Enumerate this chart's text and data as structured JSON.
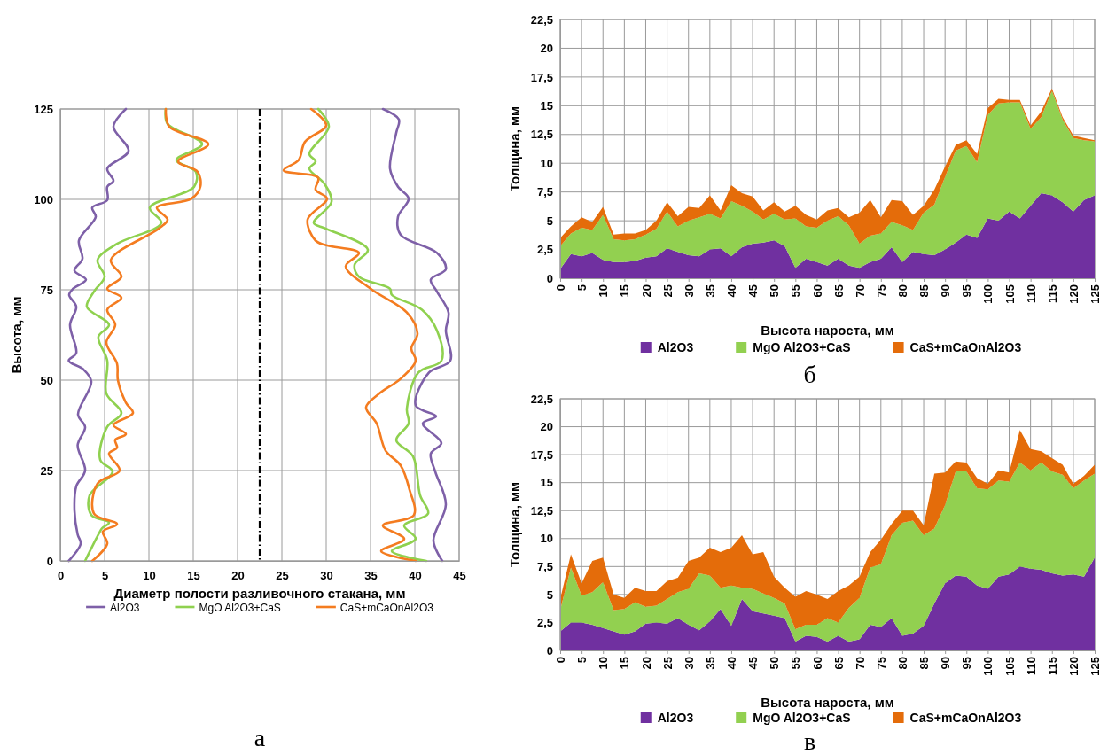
{
  "chart_data": [
    {
      "type": "line",
      "title": "а",
      "xlabel": "Диаметр полости разливочного стакана, мм",
      "ylabel": "Высота, мм",
      "xlim": [
        0,
        45
      ],
      "xticks": [
        0,
        5,
        10,
        15,
        20,
        25,
        30,
        35,
        40,
        45
      ],
      "ylim": [
        0,
        125
      ],
      "yticks": [
        0,
        25,
        50,
        75,
        100,
        125
      ],
      "grid": true,
      "legend": "bottom",
      "line_style": "solid",
      "ref_lines": [
        {
          "axis": "x",
          "value": 22.5,
          "color": "#000000",
          "line_style": "dashed"
        }
      ],
      "series": [
        {
          "name": "Al2O3",
          "color": "#7e60a8",
          "x": [
            0.95,
            2.3,
            1.96,
            1.6,
            1.8,
            2.8,
            1.96,
            2.8,
            2.0,
            3.5,
            2.6,
            0.95,
            1.8,
            1.1,
            1.8,
            1.0,
            1.45,
            2.9,
            1.6,
            2.5,
            2.1,
            4.0,
            3.6,
            5.3,
            5.3,
            6.0,
            5.3,
            7.7,
            6.0,
            7.4
          ],
          "values": [
            0,
            4.8,
            7.3,
            14,
            20.6,
            25,
            32,
            37,
            40.5,
            49.6,
            53,
            55.4,
            57.5,
            65.3,
            70.3,
            73.6,
            75.3,
            77.8,
            80.3,
            83.6,
            88.6,
            95.2,
            97.7,
            99.8,
            103.5,
            105.1,
            108.5,
            113.4,
            120.1,
            125
          ]
        },
        {
          "name": "MgO Al2O3+CaS",
          "color": "#8fd14f",
          "x": [
            2.8,
            4.3,
            4.7,
            5.5,
            3.5,
            3.3,
            5.9,
            4.5,
            5.3,
            6.9,
            5.2,
            5.3,
            4.3,
            5.5,
            3.0,
            3.8,
            5.0,
            4.2,
            6.4,
            11.4,
            10.1,
            15.1,
            15.3,
            13.1,
            16.0,
            12.1,
            11.9
          ],
          "values": [
            0,
            7.3,
            9,
            10.6,
            12.7,
            18.1,
            24.7,
            28,
            37.1,
            40.9,
            46.3,
            55.4,
            62,
            65.3,
            70.3,
            74.5,
            78.6,
            83.2,
            87.7,
            93.5,
            97.7,
            103.5,
            107.6,
            110.9,
            115.3,
            120.9,
            125
          ]
        },
        {
          "name": "CaS+mCaOnAl2O3",
          "color": "#f47c20",
          "x": [
            3.6,
            5.3,
            4.8,
            6.4,
            3.8,
            4.2,
            6.7,
            5.5,
            6.4,
            6.2,
            7.4,
            6.0,
            8.2,
            7.4,
            6.5,
            6.4,
            5.2,
            6.2,
            5.3,
            6.9,
            5.3,
            6.9,
            5.7,
            11.1,
            12.1,
            10.9,
            14.8,
            15.8,
            15.5,
            13.3,
            16.7,
            12.3,
            11.9
          ],
          "values": [
            0,
            4.8,
            8.1,
            10.2,
            13.1,
            21.4,
            25,
            29.7,
            31.3,
            33.5,
            35.1,
            37.6,
            40.9,
            43.8,
            50,
            54.6,
            60.4,
            65.3,
            69.5,
            72.8,
            75.3,
            78.6,
            83.2,
            91.9,
            94.4,
            97.7,
            100.2,
            103.5,
            107.6,
            110.5,
            115.3,
            120.1,
            125
          ]
        },
        {
          "color": "#7e60a8",
          "x": [
            43.1,
            42.1,
            43.5,
            42.3,
            41.8,
            43.0,
            40.9,
            42.4,
            40.1,
            41.6,
            44.0,
            43.5,
            43.8,
            42.5,
            41.8,
            43.5,
            42.5,
            38.4,
            38.1,
            39.3,
            38.1,
            37.2,
            37.9,
            38.2,
            36.4
          ],
          "values": [
            0,
            5.6,
            15.6,
            24.7,
            29.7,
            32.6,
            38,
            40,
            43,
            52.1,
            55.4,
            63.7,
            68.7,
            74.5,
            77.8,
            80.7,
            85.2,
            90.2,
            95.2,
            100.2,
            103.5,
            108.5,
            118.4,
            122.1,
            125
          ]
        },
        {
          "color": "#8fd14f",
          "x": [
            41.3,
            37.4,
            40.1,
            38.8,
            41.5,
            40.6,
            39.8,
            37.9,
            39.3,
            39.1,
            40.4,
            43.0,
            42.5,
            40.8,
            37.4,
            37.2,
            33.7,
            33.2,
            34.7,
            30.0,
            28.6,
            30.6,
            29.8,
            28.1,
            28.8,
            28.1,
            30.3,
            29.1
          ],
          "values": [
            0,
            2.7,
            6.1,
            9.8,
            13.1,
            18.1,
            28.9,
            33.4,
            38,
            42.1,
            52.1,
            55.4,
            63.7,
            69.5,
            73.6,
            75.3,
            78.6,
            81.9,
            86.1,
            91.9,
            93.5,
            99.3,
            104.3,
            108.5,
            110.5,
            112.6,
            120.1,
            125
          ]
        },
        {
          "color": "#f47c20",
          "x": [
            40.1,
            36.2,
            38.8,
            36.4,
            39.9,
            39.4,
            38.4,
            36.7,
            35.7,
            34.5,
            36.0,
            38.4,
            40.1,
            39.6,
            40.3,
            39.1,
            35.0,
            32.2,
            33.7,
            30.0,
            28.8,
            27.9,
            30.1,
            28.8,
            29.1,
            25.2,
            26.9,
            27.6,
            30.0,
            28.3
          ],
          "values": [
            0,
            2.7,
            6.1,
            9.8,
            12.7,
            19.7,
            26.4,
            30.5,
            38,
            42.5,
            46.3,
            50.4,
            55.4,
            58.7,
            62.9,
            68.7,
            75.3,
            81.5,
            85.2,
            87.3,
            88.6,
            94.4,
            100.2,
            102.7,
            106,
            108,
            110.9,
            115.9,
            120.5,
            125
          ]
        }
      ]
    },
    {
      "type": "area",
      "stacked": true,
      "title": "б",
      "xlabel": "Высота нароста,  мм",
      "ylabel": "Толщина, мм",
      "xlim": [
        0,
        125
      ],
      "xticks": [
        0,
        5,
        10,
        15,
        20,
        25,
        30,
        35,
        40,
        45,
        50,
        55,
        60,
        65,
        70,
        75,
        80,
        85,
        90,
        95,
        100,
        105,
        110,
        115,
        120,
        125
      ],
      "ylim": [
        0,
        22.5
      ],
      "yticks": [
        0,
        {
          "value": 2.5,
          "label": "2,5"
        },
        5,
        {
          "value": 7.5,
          "label": "7,5"
        },
        10,
        {
          "value": 12.5,
          "label": "12,5"
        },
        15,
        {
          "value": 17.5,
          "label": "17,5"
        },
        20,
        {
          "value": 22.5,
          "label": "22,5"
        }
      ],
      "grid": true,
      "legend": "bottom",
      "x": [
        0,
        2.5,
        5,
        7.5,
        10,
        12.5,
        15,
        17.5,
        20,
        22.5,
        25,
        27.5,
        30,
        32.5,
        35,
        37.5,
        40,
        42.5,
        45,
        47.5,
        50,
        52.5,
        55,
        57.5,
        60,
        62.5,
        65,
        67.5,
        70,
        72.5,
        75,
        77.5,
        80,
        82.5,
        85,
        87.5,
        90,
        92.5,
        95,
        97.5,
        100,
        102.5,
        105,
        107.5,
        110,
        112.5,
        115,
        117.5,
        120,
        122.5,
        125
      ],
      "series": [
        {
          "name": "Al2O3",
          "color": "#7030a0",
          "values": [
            0.8,
            2.1,
            1.9,
            2.2,
            1.6,
            1.4,
            1.4,
            1.5,
            1.8,
            1.9,
            2.6,
            2.3,
            2.0,
            1.9,
            2.5,
            2.6,
            1.9,
            2.7,
            3.0,
            3.1,
            3.3,
            2.8,
            0.9,
            1.7,
            1.4,
            1.1,
            1.7,
            1.1,
            0.9,
            1.4,
            1.7,
            2.7,
            1.4,
            2.3,
            2.1,
            2.0,
            2.5,
            3.1,
            3.8,
            3.5,
            5.2,
            5.0,
            5.8,
            5.2,
            6.3,
            7.4,
            7.2,
            6.6,
            5.8,
            6.8,
            7.2
          ]
        },
        {
          "name": "MgO Al2O3+CaS",
          "color": "#92d050",
          "values": [
            2.0,
            1.8,
            2.5,
            2.0,
            3.9,
            2.0,
            1.9,
            1.9,
            2.0,
            2.4,
            3.2,
            2.2,
            3.0,
            3.4,
            3.1,
            2.6,
            4.8,
            3.6,
            2.8,
            2.0,
            2.3,
            2.3,
            4.3,
            2.8,
            3.0,
            3.9,
            3.7,
            3.5,
            2.1,
            2.3,
            2.2,
            2.2,
            3.2,
            1.9,
            3.6,
            4.4,
            6.3,
            8.0,
            7.7,
            6.6,
            9.0,
            10.2,
            9.5,
            10.1,
            6.7,
            6.6,
            9.1,
            7.2,
            6.4,
            5.2,
            4.7
          ]
        },
        {
          "name": "CaS+mCaOnAl2O3",
          "color": "#e46c0a",
          "values": [
            0.7,
            0.6,
            0.9,
            0.7,
            0.7,
            0.4,
            0.6,
            0.5,
            0.4,
            0.7,
            0.8,
            0.9,
            1.2,
            0.8,
            1.6,
            0.7,
            1.4,
            1.1,
            1.3,
            0.8,
            1.0,
            0.7,
            1.1,
            1.0,
            0.7,
            0.9,
            0.7,
            0.7,
            2.7,
            3.1,
            1.4,
            1.9,
            2.1,
            1.3,
            0.6,
            1.3,
            0.9,
            0.5,
            0.5,
            0.7,
            0.6,
            0.4,
            0.2,
            0.2,
            0.3,
            0.5,
            0.2,
            0.2,
            0.2,
            0.2,
            0.1
          ]
        }
      ]
    },
    {
      "type": "area",
      "stacked": true,
      "title": "в",
      "xlabel": "Высота нароста,  мм",
      "ylabel": "Толщина, мм",
      "xlim": [
        0,
        125
      ],
      "xticks": [
        0,
        5,
        10,
        15,
        20,
        25,
        30,
        35,
        40,
        45,
        50,
        55,
        60,
        65,
        70,
        75,
        80,
        85,
        90,
        95,
        100,
        105,
        110,
        115,
        120,
        125
      ],
      "ylim": [
        0,
        22.5
      ],
      "yticks": [
        0,
        {
          "value": 2.5,
          "label": "2,5"
        },
        5,
        {
          "value": 7.5,
          "label": "7,5"
        },
        10,
        {
          "value": 12.5,
          "label": "12,5"
        },
        15,
        {
          "value": 17.5,
          "label": "17,5"
        },
        20,
        {
          "value": 22.5,
          "label": "22,5"
        }
      ],
      "grid": true,
      "legend": "bottom",
      "x": [
        0,
        2.5,
        5,
        7.5,
        10,
        12.5,
        15,
        17.5,
        20,
        22.5,
        25,
        27.5,
        30,
        32.5,
        35,
        37.5,
        40,
        42.5,
        45,
        47.5,
        50,
        52.5,
        55,
        57.5,
        60,
        62.5,
        65,
        67.5,
        70,
        72.5,
        75,
        77.5,
        80,
        82.5,
        85,
        87.5,
        90,
        92.5,
        95,
        97.5,
        100,
        102.5,
        105,
        107.5,
        110,
        112.5,
        115,
        117.5,
        120,
        122.5,
        125
      ],
      "series": [
        {
          "name": "Al2O3",
          "color": "#7030a0",
          "values": [
            1.7,
            2.5,
            2.5,
            2.3,
            2.0,
            1.7,
            1.4,
            1.7,
            2.4,
            2.5,
            2.4,
            2.9,
            2.3,
            1.8,
            2.6,
            3.7,
            2.2,
            4.6,
            3.5,
            3.3,
            3.1,
            2.9,
            0.8,
            1.3,
            1.2,
            0.8,
            1.3,
            0.8,
            1.0,
            2.3,
            2.1,
            2.9,
            1.3,
            1.5,
            2.2,
            4.2,
            6.0,
            6.7,
            6.6,
            5.8,
            5.5,
            6.6,
            6.8,
            7.5,
            7.3,
            7.2,
            6.9,
            6.7,
            6.8,
            6.6,
            8.3
          ]
        },
        {
          "name": "MgO Al2O3+CaS",
          "color": "#92d050",
          "values": [
            1.9,
            4.9,
            2.4,
            2.9,
            4.1,
            1.9,
            2.3,
            2.6,
            1.5,
            1.5,
            2.2,
            2.3,
            3.2,
            5.1,
            4.1,
            1.9,
            3.6,
            1.0,
            2.0,
            1.8,
            1.6,
            1.3,
            1.1,
            1.0,
            1.1,
            2.1,
            1.2,
            3.0,
            3.7,
            5.1,
            5.6,
            7.4,
            10.1,
            10.1,
            8.1,
            6.7,
            7.0,
            9.3,
            9.4,
            8.7,
            8.9,
            8.6,
            8.3,
            9.3,
            8.8,
            9.6,
            9.1,
            9.0,
            7.7,
            8.6,
            7.5
          ]
        },
        {
          "name": "CaS+mCaOnAl2O3",
          "color": "#e46c0a",
          "values": [
            1.0,
            1.2,
            1.1,
            2.8,
            2.2,
            1.4,
            1.0,
            1.3,
            1.4,
            1.3,
            1.6,
            1.3,
            2.5,
            1.4,
            2.5,
            3.2,
            3.4,
            4.7,
            3.1,
            3.7,
            1.9,
            1.4,
            2.9,
            3.0,
            2.7,
            1.7,
            2.8,
            2.0,
            1.9,
            1.4,
            2.2,
            1.0,
            1.1,
            0.9,
            0.9,
            4.9,
            2.9,
            0.9,
            0.8,
            0.9,
            0.5,
            0.9,
            0.8,
            2.9,
            1.9,
            1.0,
            1.2,
            0.9,
            0.4,
            0.4,
            0.8
          ]
        }
      ]
    }
  ]
}
